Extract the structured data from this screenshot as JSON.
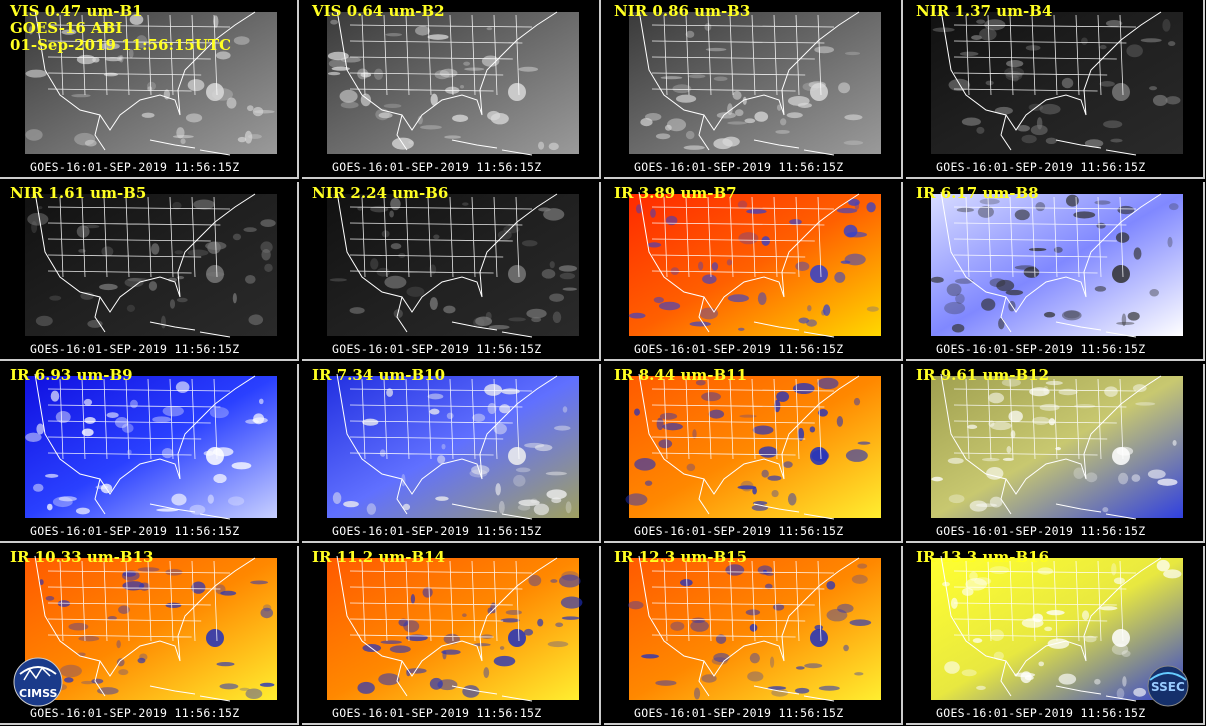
{
  "header": {
    "satellite_line": "GOES-16 ABI",
    "datetime_line": "01-Sep-2019 11:56:15UTC"
  },
  "timestamp": "GOES-16:01-SEP-2019 11:56:15Z",
  "panels": [
    {
      "label": "VIS 0.47 um-B1",
      "palette": "gray"
    },
    {
      "label": "VIS 0.64 um-B2",
      "palette": "gray"
    },
    {
      "label": "NIR 0.86 um-B3",
      "palette": "gray"
    },
    {
      "label": "NIR 1.37 um-B4",
      "palette": "dark"
    },
    {
      "label": "NIR 1.61 um-B5",
      "palette": "dark"
    },
    {
      "label": "NIR 2.24 um-B6",
      "palette": "dark"
    },
    {
      "label": "IR 3.89 um-B7",
      "palette": "red-yellow"
    },
    {
      "label": "IR 6.17 um-B8",
      "palette": "white-blue"
    },
    {
      "label": "IR 6.93 um-B9",
      "palette": "blue"
    },
    {
      "label": "IR 7.34 um-B10",
      "palette": "blue-olive"
    },
    {
      "label": "IR 8.44 um-B11",
      "palette": "orange-yellow"
    },
    {
      "label": "IR 9.61 um-B12",
      "palette": "olive-blue"
    },
    {
      "label": "IR 10.33 um-B13",
      "palette": "orange-yellow"
    },
    {
      "label": "IR 11.2 um-B14",
      "palette": "orange-yellow"
    },
    {
      "label": "IR 12.3 um-B15",
      "palette": "orange-yellow"
    },
    {
      "label": "IR 13.3 um-B16",
      "palette": "yellow-blue"
    }
  ],
  "logos": {
    "left": "CIMSS",
    "right": "SSEC"
  }
}
